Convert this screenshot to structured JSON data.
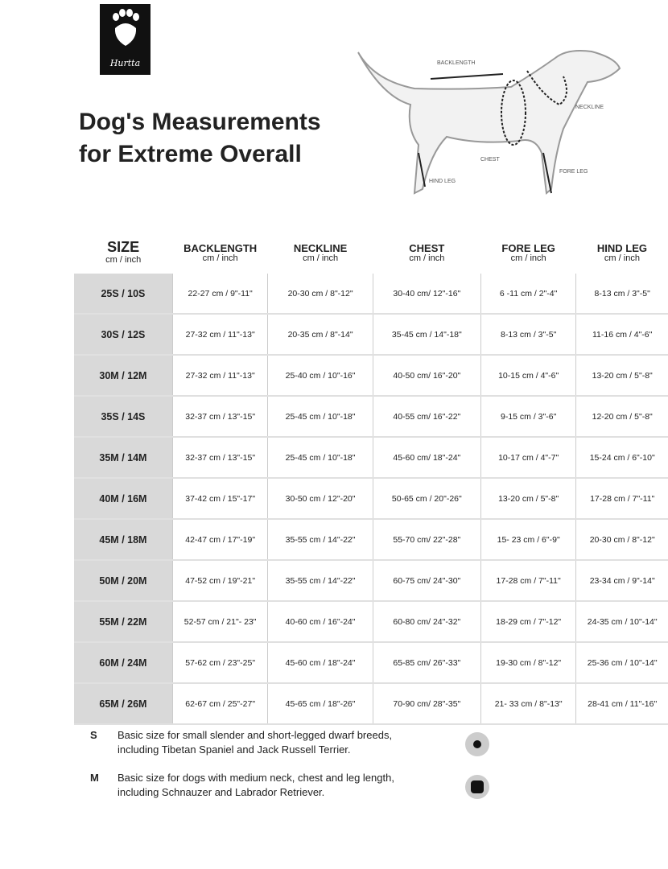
{
  "logo": {
    "brand": "Hurtta",
    "icon": "paw-icon"
  },
  "title": {
    "line1": "Dog's Measurements",
    "line2": "for Extreme Overall"
  },
  "diagram": {
    "labels": {
      "backlength": "BACKLENGTH",
      "neckline": "NECKLINE",
      "chest": "CHEST",
      "fore_leg": "FORE LEG",
      "hind_leg": "HIND LEG"
    }
  },
  "table": {
    "headers": [
      {
        "label": "SIZE",
        "unit": "cm / inch"
      },
      {
        "label": "BACKLENGTH",
        "unit": "cm / inch"
      },
      {
        "label": "NECKLINE",
        "unit": "cm / inch"
      },
      {
        "label": "CHEST",
        "unit": "cm / inch"
      },
      {
        "label": "FORE LEG",
        "unit": "cm / inch"
      },
      {
        "label": "HIND LEG",
        "unit": "cm / inch"
      }
    ],
    "rows": [
      [
        "25S / 10S",
        "22-27 cm / 9\"-11\"",
        "20-30 cm / 8\"-12\"",
        "30-40 cm/ 12\"-16\"",
        "6 -11 cm / 2\"-4\"",
        "8-13 cm / 3\"-5\""
      ],
      [
        "30S / 12S",
        "27-32 cm / 11\"-13\"",
        "20-35 cm / 8\"-14\"",
        "35-45 cm / 14\"-18\"",
        "8-13 cm / 3\"-5\"",
        "11-16 cm / 4\"-6\""
      ],
      [
        "30M / 12M",
        "27-32 cm / 11\"-13\"",
        "25-40 cm / 10\"-16\"",
        "40-50 cm/ 16\"-20\"",
        "10-15 cm / 4\"-6\"",
        "13-20 cm / 5\"-8\""
      ],
      [
        "35S / 14S",
        "32-37 cm / 13\"-15\"",
        "25-45 cm / 10\"-18\"",
        "40-55 cm/ 16\"-22\"",
        "9-15 cm / 3\"-6\"",
        "12-20 cm / 5\"-8\""
      ],
      [
        "35M / 14M",
        "32-37 cm / 13\"-15\"",
        "25-45 cm / 10\"-18\"",
        "45-60 cm/ 18\"-24\"",
        "10-17 cm / 4\"-7\"",
        "15-24 cm / 6\"-10\""
      ],
      [
        "40M / 16M",
        "37-42 cm / 15\"-17\"",
        "30-50 cm / 12\"-20\"",
        "50-65 cm / 20\"-26\"",
        "13-20 cm / 5\"-8\"",
        "17-28 cm / 7\"-11\""
      ],
      [
        "45M / 18M",
        "42-47 cm / 17\"-19\"",
        "35-55 cm / 14\"-22\"",
        "55-70 cm/ 22\"-28\"",
        "15- 23 cm / 6\"-9\"",
        "20-30 cm / 8\"-12\""
      ],
      [
        "50M / 20M",
        "47-52 cm / 19\"-21\"",
        "35-55 cm / 14\"-22\"",
        "60-75 cm/ 24\"-30\"",
        "17-28 cm / 7\"-11\"",
        "23-34 cm / 9\"-14\""
      ],
      [
        "55M / 22M",
        "52-57 cm / 21\"- 23\"",
        "40-60 cm / 16\"-24\"",
        "60-80 cm/ 24\"-32\"",
        "18-29 cm / 7\"-12\"",
        "24-35 cm / 10\"-14\""
      ],
      [
        "60M / 24M",
        "57-62 cm / 23\"-25\"",
        "45-60 cm / 18\"-24\"",
        "65-85 cm/ 26\"-33\"",
        "19-30 cm / 8\"-12\"",
        "25-36 cm / 10\"-14\""
      ],
      [
        "65M / 26M",
        "62-67 cm / 25\"-27\"",
        "45-65 cm / 18\"-26\"",
        "70-90 cm/ 28\"-35\"",
        "21- 33 cm / 8\"-13\"",
        "28-41 cm / 11\"-16\""
      ]
    ]
  },
  "legend": [
    {
      "code": "S",
      "line1": "Basic size for small slender and short-legged dwarf breeds,",
      "line2": "including Tibetan Spaniel and Jack Russell Terrier.",
      "icon": "round-dot-icon"
    },
    {
      "code": "M",
      "line1": "Basic size for dogs with medium neck, chest and leg length,",
      "line2": "including Schnauzer and Labrador Retriever.",
      "icon": "square-dot-icon"
    }
  ]
}
